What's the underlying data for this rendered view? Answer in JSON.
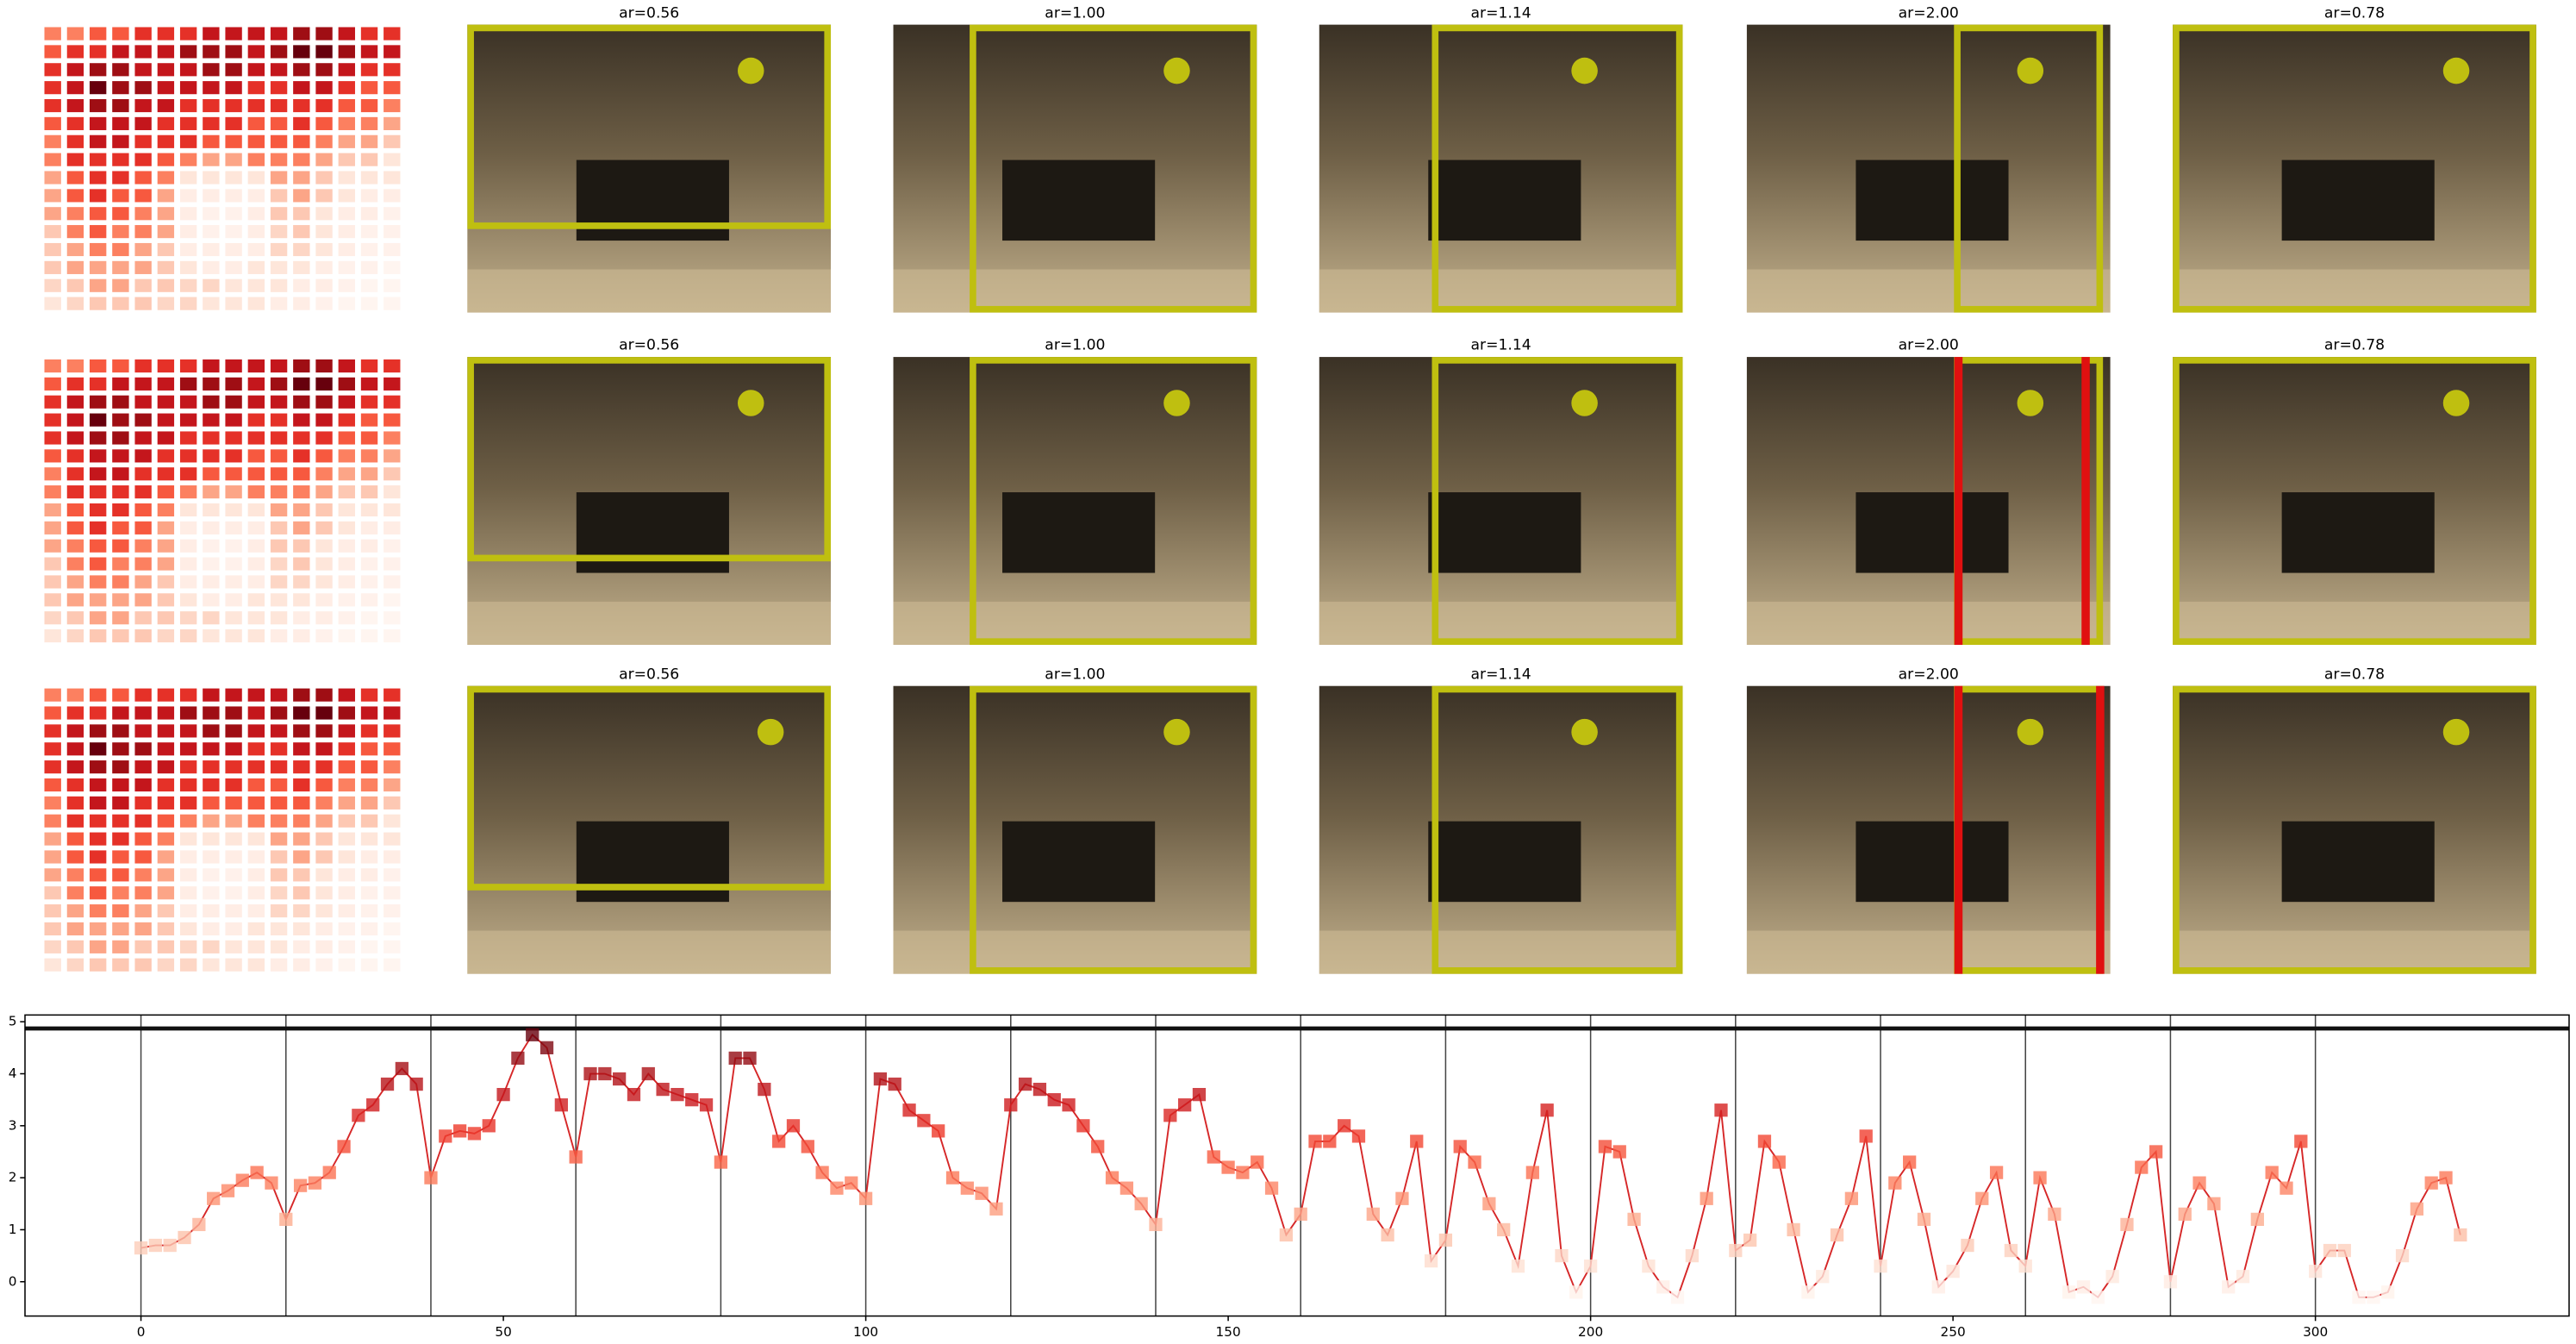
{
  "panels": {
    "rows": [
      [
        "ar=0.56",
        "ar=1.00",
        "ar=1.14",
        "ar=2.00",
        "ar=0.78"
      ],
      [
        "ar=0.56",
        "ar=1.00",
        "ar=1.14",
        "ar=2.00",
        "ar=0.78"
      ],
      [
        "ar=0.56",
        "ar=1.00",
        "ar=1.14",
        "ar=2.00",
        "ar=0.78"
      ]
    ]
  },
  "chart_data": [
    {
      "type": "heatmap",
      "colormap": [
        "#fff5f0",
        "#fee0d2",
        "#fcbba1",
        "#fc9272",
        "#fb6a4a",
        "#ef3b2c",
        "#cb181d",
        "#a50f15",
        "#67000d"
      ],
      "values": [
        [
          2,
          2,
          2.5,
          2.5,
          3,
          3,
          3,
          3.5,
          3.5,
          3.5,
          3.5,
          4,
          4,
          3.5,
          3,
          3
        ],
        [
          2.5,
          3,
          3,
          3.5,
          3.5,
          3.5,
          4,
          4,
          4,
          3.5,
          4,
          4.5,
          4.5,
          4,
          3.5,
          3.5
        ],
        [
          3,
          3.5,
          4,
          4,
          3.5,
          3.5,
          3.5,
          4,
          4,
          3.5,
          3.5,
          4,
          4,
          3.5,
          3,
          3
        ],
        [
          3,
          3.5,
          4.5,
          4,
          4,
          3.5,
          3.5,
          3.5,
          3.5,
          3,
          3,
          3.5,
          3.5,
          3,
          2.5,
          2.5
        ],
        [
          3,
          3.5,
          4,
          4,
          3.5,
          3.5,
          3,
          3,
          3,
          3,
          3,
          3,
          3,
          2.5,
          2.5,
          2
        ],
        [
          2.5,
          3,
          3.5,
          3.5,
          3.5,
          3,
          3,
          3,
          3,
          2.5,
          2.5,
          3,
          2.5,
          2,
          2,
          1.5
        ],
        [
          2,
          3,
          3.5,
          3.5,
          3,
          3,
          3,
          2.5,
          2.5,
          2.5,
          2.5,
          2.5,
          2,
          1.5,
          1.5,
          1
        ],
        [
          2,
          3,
          3,
          3,
          3,
          2.5,
          2,
          1.5,
          1.5,
          2,
          2,
          2,
          1.5,
          1,
          1,
          0.5
        ],
        [
          1.5,
          2.5,
          3,
          3,
          2.5,
          2,
          0.5,
          0.5,
          0.5,
          0.5,
          1.5,
          1.5,
          1,
          0.5,
          0.5,
          0.5
        ],
        [
          1.5,
          2.5,
          3,
          2.5,
          2.5,
          1.5,
          0.3,
          0.3,
          0.3,
          0.3,
          1,
          1.5,
          1,
          0.5,
          0.3,
          0.3
        ],
        [
          1.5,
          2,
          2.5,
          2.5,
          2,
          1.5,
          0.3,
          0.2,
          0.2,
          0.3,
          1,
          1,
          0.5,
          0.3,
          0.3,
          0.2
        ],
        [
          1,
          2,
          2.5,
          2,
          2,
          1.5,
          0.3,
          0.2,
          0.2,
          0.3,
          0.8,
          1,
          0.5,
          0.3,
          0.2,
          0.2
        ],
        [
          1,
          1.5,
          2,
          2,
          1.5,
          1,
          0.3,
          0.3,
          0.3,
          0.3,
          0.8,
          0.8,
          0.5,
          0.3,
          0.2,
          0.2
        ],
        [
          1,
          1.5,
          1.5,
          1.5,
          1.5,
          1,
          0.5,
          0.3,
          0.3,
          0.5,
          0.5,
          0.5,
          0.3,
          0.2,
          0.2,
          0.1
        ],
        [
          0.8,
          1,
          1.5,
          1.5,
          1,
          1,
          0.8,
          0.8,
          0.5,
          0.5,
          0.5,
          0.3,
          0.3,
          0.2,
          0.1,
          0.1
        ],
        [
          0.5,
          0.8,
          1,
          1,
          1,
          0.8,
          0.8,
          0.5,
          0.5,
          0.5,
          0.3,
          0.3,
          0.2,
          0.1,
          0.1,
          0.1
        ]
      ]
    },
    {
      "type": "line",
      "color": "#d62728",
      "colormap": [
        "#fff5f0",
        "#fee0d2",
        "#fcbba1",
        "#fc9272",
        "#fb6a4a",
        "#ef3b2c",
        "#cb181d",
        "#a50f15",
        "#67000d"
      ],
      "x": [
        0,
        2,
        4,
        6,
        8,
        10,
        12,
        14,
        16,
        18,
        20,
        22,
        24,
        26,
        28,
        30,
        32,
        34,
        36,
        38,
        40,
        42,
        44,
        46,
        48,
        50,
        52,
        54,
        56,
        58,
        60,
        62,
        64,
        66,
        68,
        70,
        72,
        74,
        76,
        78,
        80,
        82,
        84,
        86,
        88,
        90,
        92,
        94,
        96,
        98,
        100,
        102,
        104,
        106,
        108,
        110,
        112,
        114,
        116,
        118,
        120,
        122,
        124,
        126,
        128,
        130,
        132,
        134,
        136,
        138,
        140,
        142,
        144,
        146,
        148,
        150,
        152,
        154,
        156,
        158,
        160,
        162,
        164,
        166,
        168,
        170,
        172,
        174,
        176,
        178,
        180,
        182,
        184,
        186,
        188,
        190,
        192,
        194,
        196,
        198,
        200,
        202,
        204,
        206,
        208,
        210,
        212,
        214,
        216,
        218,
        220,
        222,
        224,
        226,
        228,
        230,
        232,
        234,
        236,
        238,
        240,
        242,
        244,
        246,
        248,
        250,
        252,
        254,
        256,
        258,
        260,
        262,
        264,
        266,
        268,
        270,
        272,
        274,
        276,
        278,
        280,
        282,
        284,
        286,
        288,
        290,
        292,
        294,
        296,
        298,
        300,
        302,
        304,
        306,
        308,
        310,
        312,
        314,
        316,
        318,
        320
      ],
      "values": [
        0.65,
        0.7,
        0.7,
        0.85,
        1.1,
        1.6,
        1.75,
        1.95,
        2.1,
        1.9,
        1.2,
        1.85,
        1.9,
        2.1,
        2.6,
        3.2,
        3.4,
        3.8,
        4.1,
        3.8,
        2.0,
        2.8,
        2.9,
        2.85,
        3.0,
        3.6,
        4.3,
        4.75,
        4.5,
        3.4,
        2.4,
        4.0,
        4.0,
        3.9,
        3.6,
        4.0,
        3.7,
        3.6,
        3.5,
        3.4,
        2.3,
        4.3,
        4.3,
        3.7,
        2.7,
        3.0,
        2.6,
        2.1,
        1.8,
        1.9,
        1.6,
        3.9,
        3.8,
        3.3,
        3.1,
        2.9,
        2.0,
        1.8,
        1.7,
        1.4,
        3.4,
        3.8,
        3.7,
        3.5,
        3.4,
        3.0,
        2.6,
        2.0,
        1.8,
        1.5,
        1.1,
        3.2,
        3.4,
        3.6,
        2.4,
        2.2,
        2.1,
        2.3,
        1.8,
        0.9,
        1.3,
        2.7,
        2.7,
        3.0,
        2.8,
        1.3,
        0.9,
        1.6,
        2.7,
        0.4,
        0.8,
        2.6,
        2.3,
        1.5,
        1.0,
        0.3,
        2.1,
        3.3,
        0.5,
        -0.2,
        0.3,
        2.6,
        2.5,
        1.2,
        0.3,
        -0.1,
        -0.3,
        0.5,
        1.6,
        3.3,
        0.6,
        0.8,
        2.7,
        2.3,
        1.0,
        -0.2,
        0.1,
        0.9,
        1.6,
        2.8,
        0.3,
        1.9,
        2.3,
        1.2,
        -0.1,
        0.2,
        0.7,
        1.6,
        2.1,
        0.6,
        0.3,
        2.0,
        1.3,
        -0.2,
        -0.1,
        -0.3,
        0.1,
        1.1,
        2.2,
        2.5,
        0.0,
        1.3,
        1.9,
        1.5,
        -0.1,
        0.1,
        1.2,
        2.1,
        1.8,
        2.7,
        0.2,
        0.6,
        0.6,
        -0.3,
        -0.3,
        -0.2,
        0.5,
        1.4,
        1.9,
        2.0,
        0.9
      ],
      "xlim": [
        -16,
        335
      ],
      "ylim": [
        -0.66,
        5.13
      ],
      "xticks": [
        0,
        50,
        100,
        150,
        200,
        250,
        300
      ],
      "yticks": [
        0,
        1,
        2,
        3,
        4,
        5
      ],
      "vlines": [
        0,
        20,
        40,
        60,
        80,
        100,
        120,
        140,
        160,
        180,
        200,
        220,
        240,
        260,
        280,
        300
      ],
      "hline": 4.87
    }
  ]
}
